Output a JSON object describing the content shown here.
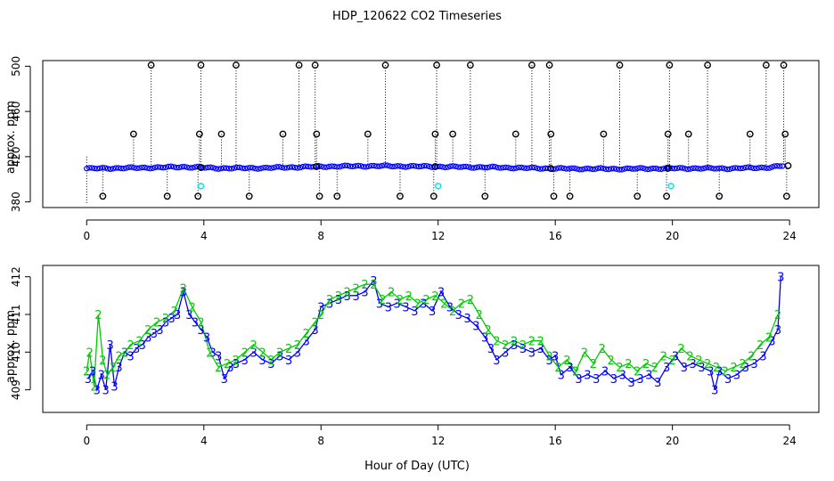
{
  "title": "HDP_120622  CO2 Timeseries",
  "xlabel": "Hour of Day (UTC)",
  "colors": {
    "blue": "#0000ff",
    "green": "#00cc00",
    "cyan": "#00e5e5",
    "black": "#000000"
  },
  "chart_data": [
    {
      "type": "scatter",
      "name": "top-panel",
      "ylabel": "approx. ppm",
      "xlim": [
        -1.5,
        25
      ],
      "ylim": [
        375,
        505
      ],
      "x_ticks": [
        0,
        4,
        8,
        12,
        16,
        20,
        24
      ],
      "y_ticks": [
        380,
        420,
        460,
        500
      ],
      "baseline": [
        [
          0,
          409.5
        ],
        [
          2,
          410.2
        ],
        [
          3.3,
          411
        ],
        [
          4.5,
          409.8
        ],
        [
          6,
          410
        ],
        [
          8,
          411.3
        ],
        [
          10,
          411.8
        ],
        [
          12,
          411.2
        ],
        [
          14,
          410.5
        ],
        [
          16,
          409.5
        ],
        [
          18,
          409.2
        ],
        [
          20,
          409.7
        ],
        [
          22,
          409.6
        ],
        [
          23.3,
          410.5
        ],
        [
          23.8,
          412
        ]
      ],
      "cyan_points": [
        [
          3.9,
          394
        ],
        [
          12.0,
          394
        ],
        [
          19.95,
          394
        ]
      ],
      "spikes_high": [
        [
          2.2,
          501
        ],
        [
          3.9,
          501
        ],
        [
          5.1,
          501
        ],
        [
          7.25,
          501
        ],
        [
          7.8,
          501
        ],
        [
          10.2,
          501
        ],
        [
          11.95,
          501
        ],
        [
          13.1,
          501
        ],
        [
          15.2,
          501
        ],
        [
          15.8,
          501
        ],
        [
          18.2,
          501
        ],
        [
          19.9,
          501
        ],
        [
          21.2,
          501
        ],
        [
          23.2,
          501
        ],
        [
          23.8,
          501
        ]
      ],
      "spikes_mid": [
        [
          1.6,
          440
        ],
        [
          3.85,
          440
        ],
        [
          4.6,
          440
        ],
        [
          6.7,
          440
        ],
        [
          7.85,
          440
        ],
        [
          9.6,
          440
        ],
        [
          11.9,
          440
        ],
        [
          12.5,
          440
        ],
        [
          14.65,
          440
        ],
        [
          15.85,
          440
        ],
        [
          17.65,
          440
        ],
        [
          19.85,
          440
        ],
        [
          20.55,
          440
        ],
        [
          22.65,
          440
        ],
        [
          23.85,
          440
        ]
      ],
      "spikes_low": [
        [
          0.55,
          385
        ],
        [
          2.75,
          385
        ],
        [
          3.8,
          385
        ],
        [
          5.55,
          385
        ],
        [
          7.95,
          385
        ],
        [
          8.55,
          385
        ],
        [
          10.7,
          385
        ],
        [
          11.85,
          385
        ],
        [
          13.6,
          385
        ],
        [
          15.95,
          385
        ],
        [
          16.5,
          385
        ],
        [
          18.8,
          385
        ],
        [
          19.8,
          385
        ],
        [
          21.6,
          385
        ],
        [
          23.9,
          385
        ]
      ]
    },
    {
      "type": "line",
      "name": "bottom-panel",
      "ylabel": "approx. ppm",
      "xlim": [
        -1.5,
        25
      ],
      "ylim": [
        408.4,
        412.3
      ],
      "x_ticks": [
        0,
        4,
        8,
        12,
        16,
        20,
        24
      ],
      "y_ticks": [
        409,
        410,
        411,
        412
      ],
      "series": [
        {
          "name": "3",
          "color": "#0000ff",
          "points": [
            [
              0.05,
              409.3
            ],
            [
              0.2,
              409.5
            ],
            [
              0.35,
              409.0
            ],
            [
              0.5,
              409.4
            ],
            [
              0.65,
              409.0
            ],
            [
              0.8,
              410.2
            ],
            [
              0.95,
              409.1
            ],
            [
              1.1,
              409.6
            ],
            [
              1.3,
              410.0
            ],
            [
              1.5,
              409.9
            ],
            [
              1.7,
              410.1
            ],
            [
              1.9,
              410.2
            ],
            [
              2.1,
              410.4
            ],
            [
              2.3,
              410.5
            ],
            [
              2.5,
              410.6
            ],
            [
              2.7,
              410.8
            ],
            [
              2.9,
              410.9
            ],
            [
              3.1,
              411.0
            ],
            [
              3.3,
              411.6
            ],
            [
              3.5,
              411.0
            ],
            [
              3.7,
              410.8
            ],
            [
              3.9,
              410.6
            ],
            [
              4.1,
              410.4
            ],
            [
              4.3,
              410.0
            ],
            [
              4.5,
              409.9
            ],
            [
              4.7,
              409.3
            ],
            [
              4.9,
              409.6
            ],
            [
              5.1,
              409.7
            ],
            [
              5.4,
              409.8
            ],
            [
              5.7,
              410.0
            ],
            [
              6.0,
              409.8
            ],
            [
              6.3,
              409.7
            ],
            [
              6.6,
              409.9
            ],
            [
              6.9,
              409.8
            ],
            [
              7.2,
              410.0
            ],
            [
              7.5,
              410.3
            ],
            [
              7.8,
              410.6
            ],
            [
              8.0,
              411.2
            ],
            [
              8.3,
              411.3
            ],
            [
              8.6,
              411.4
            ],
            [
              8.9,
              411.5
            ],
            [
              9.2,
              411.5
            ],
            [
              9.5,
              411.6
            ],
            [
              9.8,
              411.9
            ],
            [
              10.0,
              411.3
            ],
            [
              10.3,
              411.2
            ],
            [
              10.6,
              411.3
            ],
            [
              10.9,
              411.2
            ],
            [
              11.2,
              411.1
            ],
            [
              11.5,
              411.3
            ],
            [
              11.8,
              411.1
            ],
            [
              12.1,
              411.6
            ],
            [
              12.4,
              411.2
            ],
            [
              12.7,
              411.0
            ],
            [
              13.0,
              410.9
            ],
            [
              13.3,
              410.7
            ],
            [
              13.6,
              410.4
            ],
            [
              13.8,
              410.1
            ],
            [
              14.0,
              409.8
            ],
            [
              14.3,
              410.0
            ],
            [
              14.6,
              410.2
            ],
            [
              14.9,
              410.1
            ],
            [
              15.2,
              410.0
            ],
            [
              15.5,
              410.1
            ],
            [
              15.8,
              409.8
            ],
            [
              16.0,
              409.9
            ],
            [
              16.2,
              409.4
            ],
            [
              16.5,
              409.6
            ],
            [
              16.8,
              409.3
            ],
            [
              17.1,
              409.4
            ],
            [
              17.4,
              409.3
            ],
            [
              17.7,
              409.5
            ],
            [
              18.0,
              409.3
            ],
            [
              18.3,
              409.4
            ],
            [
              18.6,
              409.2
            ],
            [
              18.9,
              409.3
            ],
            [
              19.2,
              409.4
            ],
            [
              19.5,
              409.2
            ],
            [
              19.8,
              409.6
            ],
            [
              20.1,
              409.9
            ],
            [
              20.4,
              409.6
            ],
            [
              20.7,
              409.7
            ],
            [
              21.0,
              409.6
            ],
            [
              21.3,
              409.5
            ],
            [
              21.45,
              409.0
            ],
            [
              21.6,
              409.5
            ],
            [
              21.9,
              409.3
            ],
            [
              22.2,
              409.4
            ],
            [
              22.5,
              409.6
            ],
            [
              22.8,
              409.7
            ],
            [
              23.1,
              409.9
            ],
            [
              23.4,
              410.3
            ],
            [
              23.6,
              410.6
            ],
            [
              23.7,
              412.0
            ]
          ]
        },
        {
          "name": "2",
          "color": "#00cc00",
          "points": [
            [
              0.0,
              409.5
            ],
            [
              0.1,
              410.0
            ],
            [
              0.25,
              409.1
            ],
            [
              0.4,
              411.0
            ],
            [
              0.55,
              409.8
            ],
            [
              0.7,
              409.4
            ],
            [
              0.9,
              409.6
            ],
            [
              1.1,
              409.9
            ],
            [
              1.3,
              410.0
            ],
            [
              1.5,
              410.2
            ],
            [
              1.8,
              410.3
            ],
            [
              2.1,
              410.6
            ],
            [
              2.4,
              410.8
            ],
            [
              2.7,
              410.9
            ],
            [
              3.0,
              411.1
            ],
            [
              3.3,
              411.7
            ],
            [
              3.6,
              411.2
            ],
            [
              3.9,
              410.8
            ],
            [
              4.2,
              410.0
            ],
            [
              4.5,
              409.6
            ],
            [
              4.8,
              409.7
            ],
            [
              5.1,
              409.8
            ],
            [
              5.4,
              410.0
            ],
            [
              5.7,
              410.2
            ],
            [
              6.0,
              410.0
            ],
            [
              6.3,
              409.8
            ],
            [
              6.6,
              410.0
            ],
            [
              6.9,
              410.1
            ],
            [
              7.2,
              410.2
            ],
            [
              7.5,
              410.5
            ],
            [
              7.8,
              410.8
            ],
            [
              8.0,
              411.0
            ],
            [
              8.3,
              411.4
            ],
            [
              8.6,
              411.5
            ],
            [
              8.9,
              411.6
            ],
            [
              9.2,
              411.7
            ],
            [
              9.5,
              411.8
            ],
            [
              9.8,
              411.8
            ],
            [
              10.1,
              411.4
            ],
            [
              10.4,
              411.6
            ],
            [
              10.7,
              411.4
            ],
            [
              11.0,
              411.5
            ],
            [
              11.3,
              411.3
            ],
            [
              11.6,
              411.4
            ],
            [
              11.9,
              411.5
            ],
            [
              12.2,
              411.3
            ],
            [
              12.5,
              411.1
            ],
            [
              12.8,
              411.3
            ],
            [
              13.1,
              411.4
            ],
            [
              13.4,
              411.0
            ],
            [
              13.7,
              410.6
            ],
            [
              14.0,
              410.3
            ],
            [
              14.3,
              410.2
            ],
            [
              14.6,
              410.3
            ],
            [
              14.9,
              410.2
            ],
            [
              15.2,
              410.3
            ],
            [
              15.5,
              410.3
            ],
            [
              15.8,
              409.9
            ],
            [
              16.1,
              409.6
            ],
            [
              16.4,
              409.8
            ],
            [
              16.7,
              409.5
            ],
            [
              17.0,
              410.0
            ],
            [
              17.3,
              409.7
            ],
            [
              17.6,
              410.1
            ],
            [
              17.9,
              409.8
            ],
            [
              18.2,
              409.6
            ],
            [
              18.5,
              409.7
            ],
            [
              18.8,
              409.5
            ],
            [
              19.1,
              409.7
            ],
            [
              19.4,
              409.6
            ],
            [
              19.7,
              409.9
            ],
            [
              20.0,
              409.8
            ],
            [
              20.3,
              410.1
            ],
            [
              20.6,
              409.9
            ],
            [
              20.9,
              409.8
            ],
            [
              21.2,
              409.7
            ],
            [
              21.5,
              409.6
            ],
            [
              21.8,
              409.5
            ],
            [
              22.1,
              409.6
            ],
            [
              22.4,
              409.7
            ],
            [
              22.7,
              409.9
            ],
            [
              23.0,
              410.2
            ],
            [
              23.3,
              410.4
            ],
            [
              23.6,
              411.0
            ]
          ]
        }
      ]
    }
  ]
}
